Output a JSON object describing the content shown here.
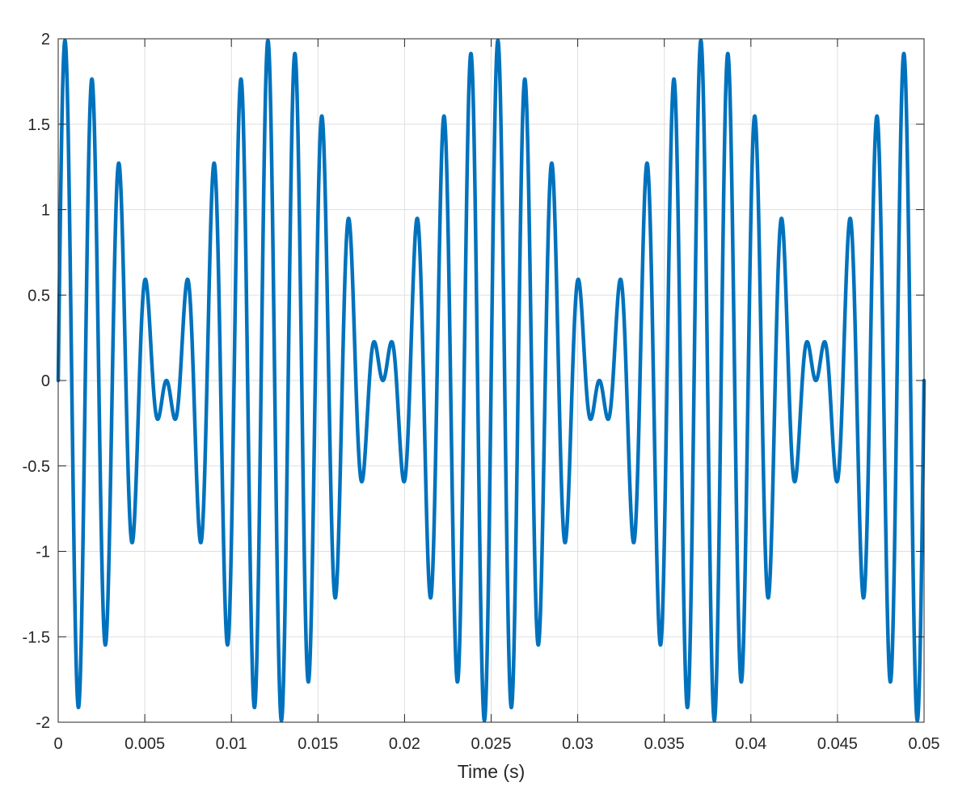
{
  "chart_data": {
    "type": "line",
    "title": "",
    "xlabel": "Time (s)",
    "ylabel": "",
    "xlim": [
      0,
      0.05
    ],
    "ylim": [
      -2,
      2
    ],
    "xticks": [
      0,
      0.005,
      0.01,
      0.015,
      0.02,
      0.025,
      0.03,
      0.035,
      0.04,
      0.045,
      0.05
    ],
    "xtick_labels": [
      "0",
      "0.005",
      "0.01",
      "0.015",
      "0.02",
      "0.025",
      "0.03",
      "0.035",
      "0.04",
      "0.045",
      "0.05"
    ],
    "yticks": [
      2,
      1.5,
      1,
      0.5,
      0,
      -0.5,
      -1,
      -1.5,
      -2
    ],
    "ytick_labels": [
      "2",
      "1.5",
      "1",
      "0.5",
      "0",
      "-0.5",
      "-1",
      "-1.5",
      "-2"
    ],
    "grid": true,
    "legend": "none",
    "series": [
      {
        "name": "",
        "color": "#0072BD",
        "expression": "sin(2*pi*600*t) + sin(2*pi*680*t)",
        "components": [
          {
            "amplitude": 1,
            "frequency_hz": 600
          },
          {
            "amplitude": 1,
            "frequency_hz": 680
          }
        ],
        "samples": 4000
      }
    ]
  }
}
